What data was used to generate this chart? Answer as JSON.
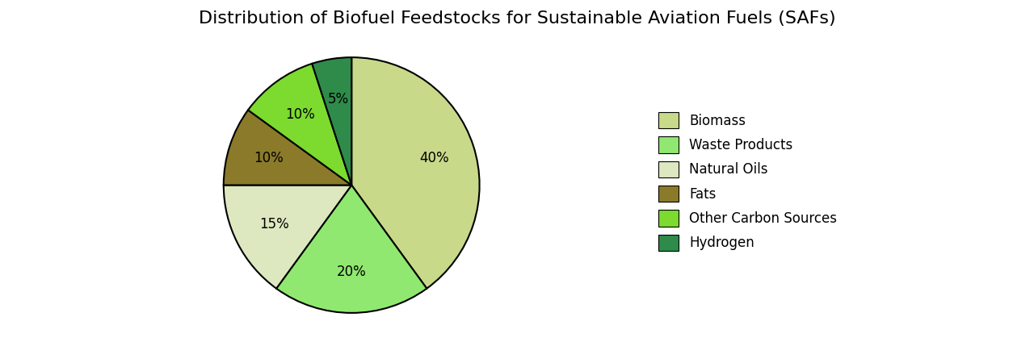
{
  "title": "Distribution of Biofuel Feedstocks for Sustainable Aviation Fuels (SAFs)",
  "labels": [
    "Biomass",
    "Waste Products",
    "Natural Oils",
    "Fats",
    "Other Carbon Sources",
    "Hydrogen"
  ],
  "values": [
    40,
    20,
    15,
    10,
    10,
    5
  ],
  "colors": [
    "#c8d98a",
    "#90e870",
    "#dde8c0",
    "#8b7a2a",
    "#7cdb2e",
    "#2e8b4a"
  ],
  "title_fontsize": 16,
  "legend_fontsize": 12,
  "startangle": 90,
  "pctdistance": 0.68
}
